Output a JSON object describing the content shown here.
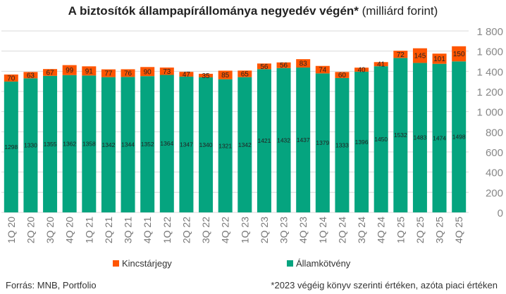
{
  "chart_data": {
    "type": "bar",
    "stacked": true,
    "title": "A biztosítók állampapírállománya negyedév végén*",
    "subtitle": "(milliárd forint)",
    "categories": [
      "1Q 20",
      "2Q 20",
      "3Q 20",
      "4Q 20",
      "1Q 21",
      "2Q 21",
      "3Q 21",
      "4Q 21",
      "1Q 22",
      "2Q 22",
      "3Q 22",
      "4Q 22",
      "1Q 23",
      "2Q 23",
      "3Q 23",
      "4Q 23",
      "1Q 24",
      "2Q 24",
      "3Q 24",
      "4Q 24",
      "1Q 25",
      "2Q 25",
      "3Q 25",
      "4Q 25"
    ],
    "series": [
      {
        "name": "Államkötvény",
        "color": "#05a47f",
        "values": [
          1298,
          1330,
          1355,
          1362,
          1358,
          1342,
          1344,
          1352,
          1364,
          1347,
          1340,
          1321,
          1342,
          1421,
          1432,
          1437,
          1379,
          1333,
          1396,
          1450,
          1532,
          1483,
          1474,
          1498
        ]
      },
      {
        "name": "Kincstárjegy",
        "color": "#ff5500",
        "values": [
          70,
          63,
          67,
          99,
          91,
          77,
          76,
          90,
          73,
          47,
          35,
          85,
          65,
          56,
          56,
          83,
          74,
          60,
          40,
          41,
          72,
          145,
          101,
          150
        ]
      }
    ],
    "ylim": [
      0,
      1800
    ],
    "yticks": [
      0,
      200,
      400,
      600,
      800,
      1000,
      1200,
      1400,
      1600,
      1800
    ],
    "ytick_labels": [
      "0",
      "200",
      "400",
      "600",
      "800",
      "1 000",
      "1 200",
      "1 400",
      "1 600",
      "1 800"
    ],
    "grid": true,
    "legend_position": "bottom"
  },
  "footer": {
    "source": "Forrás: MNB, Portfolio",
    "note": "*2023 végéig könyv szerinti értéken, azóta piaci értéken"
  }
}
